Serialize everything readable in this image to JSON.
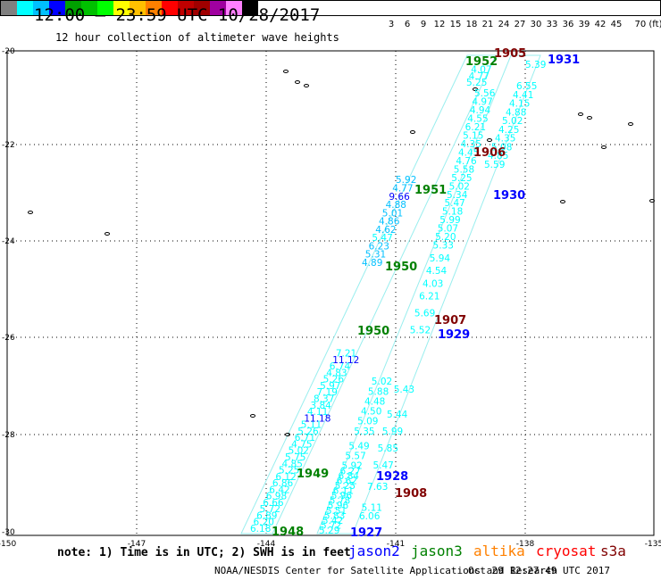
{
  "header": {
    "title": "12:00 — 23:59 UTC 10/28/2017",
    "subtitle": "12 hour collection of altimeter wave heights"
  },
  "color_scale": {
    "labels": [
      "3",
      "6",
      "9",
      "12",
      "15",
      "18",
      "21",
      "24",
      "27",
      "30",
      "33",
      "36",
      "39",
      "42",
      "45",
      "70 (ft)"
    ],
    "colors": [
      "#808080",
      "#00ffff",
      "#00c0ff",
      "#0000ff",
      "#00a000",
      "#00c000",
      "#00ff00",
      "#ffff00",
      "#ffc000",
      "#ff8000",
      "#ff0000",
      "#c00000",
      "#a00000",
      "#a000a0",
      "#ff80ff",
      "#000000"
    ]
  },
  "map": {
    "x_ticks": [
      "-150",
      "-147",
      "-144",
      "-141",
      "-138",
      "-135"
    ],
    "y_ticks": [
      "-20",
      "-22",
      "-24",
      "-26",
      "-28",
      "-30"
    ],
    "tracks": [
      {
        "name": "track-left",
        "lines": [
          {
            "t": 0.0,
            "v": "6.18",
            "c": "#00ffff"
          },
          {
            "t": 0.025,
            "v": "6.20",
            "c": "#00ffff"
          },
          {
            "t": 0.05,
            "v": "6.89",
            "c": "#00ffff"
          },
          {
            "t": 0.075,
            "v": "5.72",
            "c": "#00ffff"
          },
          {
            "t": 0.1,
            "v": "6.66",
            "c": "#00ffff"
          },
          {
            "t": 0.125,
            "v": "6.98",
            "c": "#00ffff"
          },
          {
            "t": 0.15,
            "v": "6.42",
            "c": "#00ffff"
          },
          {
            "t": 0.175,
            "v": "6.86",
            "c": "#00ffff"
          },
          {
            "t": 0.2,
            "v": "6.12",
            "c": "#00ffff"
          },
          {
            "t": 0.225,
            "v": "5.25",
            "c": "#00ffff"
          },
          {
            "t": 0.25,
            "v": "4.85",
            "c": "#00ffff"
          },
          {
            "t": 0.275,
            "v": "5.75",
            "c": "#00ffff"
          },
          {
            "t": 0.3,
            "v": "5.02",
            "c": "#00ffff"
          },
          {
            "t": 0.325,
            "v": "4.75",
            "c": "#00ffff"
          },
          {
            "t": 0.35,
            "v": "6.71",
            "c": "#00ffff"
          },
          {
            "t": 0.375,
            "v": "5.26",
            "c": "#00ffff"
          },
          {
            "t": 0.4,
            "v": "5.11",
            "c": "#00ffff"
          },
          {
            "t": 0.425,
            "v": "11.18",
            "c": "#0000ff"
          },
          {
            "t": 0.45,
            "v": "4.11",
            "c": "#00ffff"
          },
          {
            "t": 0.475,
            "v": "3.84",
            "c": "#00ffff"
          },
          {
            "t": 0.5,
            "v": "8.37",
            "c": "#00ffff"
          },
          {
            "t": 0.525,
            "v": "7.19",
            "c": "#00ffff"
          },
          {
            "t": 0.55,
            "v": "5.97",
            "c": "#00ffff"
          },
          {
            "t": 0.575,
            "v": "5.26",
            "c": "#00ffff"
          },
          {
            "t": 0.6,
            "v": "4.83",
            "c": "#00ffff"
          },
          {
            "t": 0.625,
            "v": "6.74",
            "c": "#00ffff"
          },
          {
            "t": 0.65,
            "v": "11.12",
            "c": "#0000ff"
          },
          {
            "t": 0.675,
            "v": "7.21",
            "c": "#00ffff"
          }
        ]
      },
      {
        "name": "track-mid",
        "lines": [
          {
            "t": 0.0,
            "v": "4.89",
            "c": "#00c0ff"
          },
          {
            "t": 0.04,
            "v": "5.31",
            "c": "#00c0ff"
          },
          {
            "t": 0.08,
            "v": "6.23",
            "c": "#00c0ff"
          },
          {
            "t": 0.12,
            "v": "5.47",
            "c": "#00ffff"
          },
          {
            "t": 0.16,
            "v": "4.62",
            "c": "#00c0ff"
          },
          {
            "t": 0.2,
            "v": "4.86",
            "c": "#00c0ff"
          },
          {
            "t": 0.24,
            "v": "5.01",
            "c": "#00c0ff"
          },
          {
            "t": 0.28,
            "v": "4.88",
            "c": "#00c0ff"
          },
          {
            "t": 0.32,
            "v": "9.66",
            "c": "#0000ff"
          },
          {
            "t": 0.36,
            "v": "4.77",
            "c": "#00c0ff"
          },
          {
            "t": 0.4,
            "v": "5.92",
            "c": "#00c0ff"
          }
        ]
      },
      {
        "name": "track-right",
        "lines": [
          {
            "t": 0.0,
            "v": "5.29",
            "c": "#00ffff"
          },
          {
            "t": 0.02,
            "v": "5.72",
            "c": "#00ffff"
          },
          {
            "t": 0.04,
            "v": "5.42",
            "c": "#00ffff"
          },
          {
            "t": 0.06,
            "v": "5.83",
            "c": "#00ffff"
          },
          {
            "t": 0.08,
            "v": "5.51",
            "c": "#00ffff"
          },
          {
            "t": 0.1,
            "v": "5.96",
            "c": "#00ffff"
          },
          {
            "t": 0.12,
            "v": "5.78",
            "c": "#00ffff"
          },
          {
            "t": 0.14,
            "v": "5.96",
            "c": "#00ffff"
          },
          {
            "t": 0.16,
            "v": "6.11",
            "c": "#00ffff"
          },
          {
            "t": 0.18,
            "v": "5.25",
            "c": "#00ffff"
          },
          {
            "t": 0.2,
            "v": "6.62",
            "c": "#00ffff"
          },
          {
            "t": 0.22,
            "v": "6.84",
            "c": "#00ffff"
          },
          {
            "t": 0.24,
            "v": "6.27",
            "c": "#00ffff"
          },
          {
            "t": 0.26,
            "v": "5.92",
            "c": "#00ffff"
          },
          {
            "t": 0.3,
            "v": "5.57",
            "c": "#00ffff"
          },
          {
            "t": 0.34,
            "v": "5.49",
            "c": "#00ffff"
          },
          {
            "t": 0.4,
            "v": "5.35",
            "c": "#00ffff"
          },
          {
            "t": 0.44,
            "v": "5.09",
            "c": "#00ffff"
          },
          {
            "t": 0.48,
            "v": "4.50",
            "c": "#00ffff"
          },
          {
            "t": 0.52,
            "v": "4.48",
            "c": "#00ffff"
          },
          {
            "t": 0.56,
            "v": "5.88",
            "c": "#00ffff"
          },
          {
            "t": 0.6,
            "v": "5.02",
            "c": "#00ffff"
          }
        ]
      },
      {
        "name": "track-east",
        "lines": [
          {
            "t": 0.0,
            "v": "6.06",
            "c": "#00ffff"
          },
          {
            "t": 0.02,
            "v": "5.11",
            "c": "#00ffff"
          },
          {
            "t": 0.07,
            "v": "7.63",
            "c": "#00ffff"
          },
          {
            "t": 0.12,
            "v": "5.47",
            "c": "#00ffff"
          },
          {
            "t": 0.16,
            "v": "5.85",
            "c": "#00ffff"
          },
          {
            "t": 0.2,
            "v": "5.99",
            "c": "#00ffff"
          },
          {
            "t": 0.24,
            "v": "5.44",
            "c": "#00ffff"
          },
          {
            "t": 0.3,
            "v": "5.43",
            "c": "#00ffff"
          },
          {
            "t": 0.44,
            "v": "5.52",
            "c": "#00ffff"
          },
          {
            "t": 0.48,
            "v": "5.69",
            "c": "#00ffff"
          },
          {
            "t": 0.52,
            "v": "6.21",
            "c": "#00ffff"
          },
          {
            "t": 0.55,
            "v": "4.03",
            "c": "#00ffff"
          },
          {
            "t": 0.58,
            "v": "4.54",
            "c": "#00ffff"
          },
          {
            "t": 0.61,
            "v": "5.94",
            "c": "#00ffff"
          },
          {
            "t": 0.64,
            "v": "5.33",
            "c": "#00ffff"
          },
          {
            "t": 0.66,
            "v": "5.20",
            "c": "#00ffff"
          },
          {
            "t": 0.68,
            "v": "5.07",
            "c": "#00ffff"
          },
          {
            "t": 0.7,
            "v": "5.99",
            "c": "#00ffff"
          },
          {
            "t": 0.72,
            "v": "5.18",
            "c": "#00ffff"
          },
          {
            "t": 0.74,
            "v": "5.47",
            "c": "#00ffff"
          },
          {
            "t": 0.76,
            "v": "5.34",
            "c": "#00ffff"
          },
          {
            "t": 0.78,
            "v": "5.02",
            "c": "#00ffff"
          },
          {
            "t": 0.8,
            "v": "5.25",
            "c": "#00ffff"
          },
          {
            "t": 0.82,
            "v": "5.58",
            "c": "#00ffff"
          },
          {
            "t": 0.84,
            "v": "4.76",
            "c": "#00ffff"
          },
          {
            "t": 0.86,
            "v": "4.45",
            "c": "#00ffff"
          },
          {
            "t": 0.88,
            "v": "4.35",
            "c": "#00ffff"
          },
          {
            "t": 0.9,
            "v": "5.15",
            "c": "#00ffff"
          },
          {
            "t": 0.92,
            "v": "6.21",
            "c": "#00ffff"
          },
          {
            "t": 0.94,
            "v": "4.55",
            "c": "#00ffff"
          },
          {
            "t": 0.96,
            "v": "4.94",
            "c": "#00ffff"
          },
          {
            "t": 0.98,
            "v": "4.97",
            "c": "#00ffff"
          },
          {
            "t": 1.0,
            "v": "5.56",
            "c": "#00ffff"
          }
        ]
      },
      {
        "name": "track-top",
        "lines": [
          {
            "t": 0.0,
            "v": "5.25",
            "c": "#00ffff"
          },
          {
            "t": 0.2,
            "v": "4.77",
            "c": "#00ffff"
          },
          {
            "t": 0.4,
            "v": "4.07",
            "c": "#00ffff"
          }
        ]
      },
      {
        "name": "track-far",
        "lines": [
          {
            "t": 0.0,
            "v": "5.59",
            "c": "#00ffff"
          },
          {
            "t": 0.08,
            "v": "4.85",
            "c": "#00ffff"
          },
          {
            "t": 0.16,
            "v": "5.08",
            "c": "#00ffff"
          },
          {
            "t": 0.24,
            "v": "4.35",
            "c": "#00ffff"
          },
          {
            "t": 0.32,
            "v": "4.25",
            "c": "#00ffff"
          },
          {
            "t": 0.4,
            "v": "5.02",
            "c": "#00ffff"
          },
          {
            "t": 0.48,
            "v": "4.88",
            "c": "#00ffff"
          },
          {
            "t": 0.56,
            "v": "4.15",
            "c": "#00ffff"
          },
          {
            "t": 0.64,
            "v": "4.41",
            "c": "#00ffff"
          },
          {
            "t": 0.72,
            "v": "6.55",
            "c": "#00ffff"
          },
          {
            "t": 0.92,
            "v": "5.39",
            "c": "#00ffff"
          }
        ]
      }
    ],
    "time_labels": [
      {
        "text": "1905",
        "c": "#800000"
      },
      {
        "text": "1931",
        "c": "#0000ff"
      },
      {
        "text": "1952",
        "c": "#008000"
      },
      {
        "text": "1906",
        "c": "#800000"
      },
      {
        "text": "1951",
        "c": "#008000"
      },
      {
        "text": "1930",
        "c": "#0000ff"
      },
      {
        "text": "1950",
        "c": "#008000"
      },
      {
        "text": "1907",
        "c": "#800000"
      },
      {
        "text": "1929",
        "c": "#0000ff"
      },
      {
        "text": "1950",
        "c": "#008000"
      },
      {
        "text": "1949",
        "c": "#008000"
      },
      {
        "text": "1928",
        "c": "#0000ff"
      },
      {
        "text": "1908",
        "c": "#800000"
      },
      {
        "text": "1948",
        "c": "#008000"
      },
      {
        "text": "1927",
        "c": "#0000ff"
      }
    ]
  },
  "footer": {
    "note": "note: 1) Time is in UTC; 2) SWH is in feet",
    "satellites": [
      {
        "name": "jason2",
        "color": "#0000ff"
      },
      {
        "name": "jason3",
        "color": "#008000"
      },
      {
        "name": "altika",
        "color": "#ff8000"
      },
      {
        "name": "cryosat",
        "color": "#ff0000"
      },
      {
        "name": "s3a",
        "color": "#800000"
      }
    ],
    "credit": "NOAA/NESDIS Center for Satellite Applications and Research",
    "timestamp": "Oct 29 12:27:49 UTC 2017"
  }
}
